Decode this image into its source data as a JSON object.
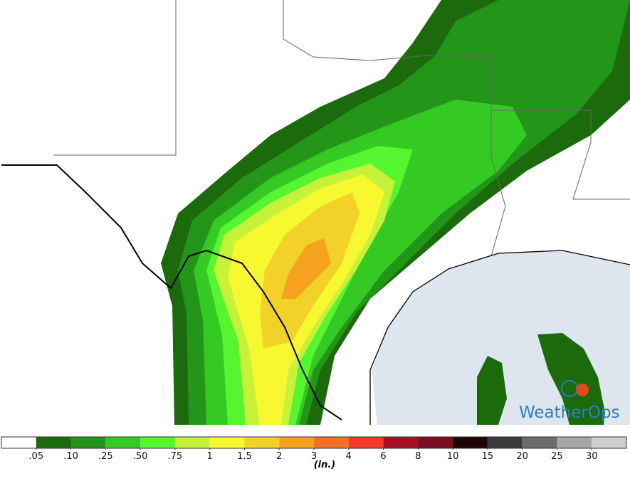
{
  "legend": {
    "colors": [
      "#ffffff",
      "#1b6b0c",
      "#23961a",
      "#35c924",
      "#55f530",
      "#c7f23a",
      "#f8f830",
      "#f2d128",
      "#f5a21e",
      "#f7702a",
      "#f53a2a",
      "#a80f22",
      "#7a0e1e",
      "#1e0606",
      "#3a3a3a",
      "#6c6c6c",
      "#a6a6a6",
      "#cfcfcf"
    ],
    "ticks": [
      {
        "value": 0.05,
        "label": ".05"
      },
      {
        "value": 0.1,
        "label": ".10"
      },
      {
        "value": 0.25,
        "label": ".25"
      },
      {
        "value": 0.5,
        "label": ".50"
      },
      {
        "value": 0.75,
        "label": ".75"
      },
      1,
      1.5,
      2,
      3,
      4,
      6,
      8,
      10,
      15,
      20,
      25,
      30
    ],
    "unit": "(in.)"
  },
  "logo": {
    "text": "WeatherOps"
  }
}
